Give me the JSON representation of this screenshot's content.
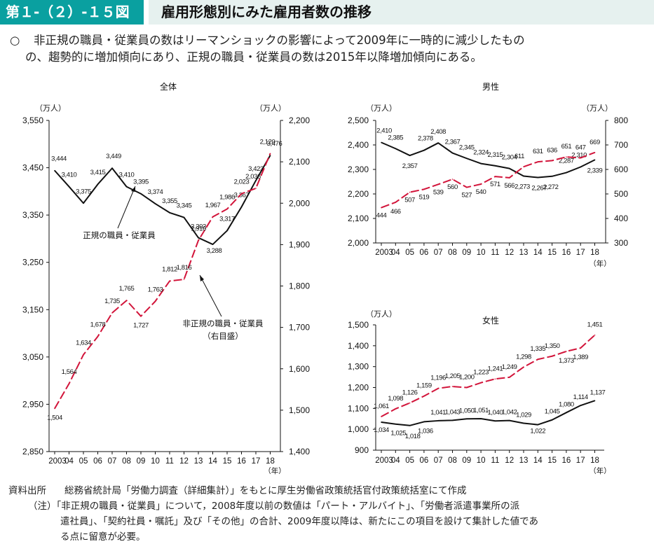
{
  "header": {
    "figure_number": "第１-（２）-１５図",
    "title": "雇用形態別にみた雇用者数の推移"
  },
  "summary": {
    "bullet": "○",
    "line1": "非正規の職員・従業員の数はリーマンショックの影響によって2009年に一時的に減少したもの",
    "line2": "の、趨勢的に増加傾向にあり、正規の職員・従業員の数は2015年以降増加傾向にある。"
  },
  "chart_data": [
    {
      "type": "line",
      "title": "全体",
      "left_unit": "（万人）",
      "right_unit": "（万人）",
      "x_unit": "（年）",
      "categories": [
        "2003",
        "04",
        "05",
        "06",
        "07",
        "08",
        "09",
        "10",
        "11",
        "12",
        "13",
        "14",
        "15",
        "16",
        "17",
        "18"
      ],
      "left_ylim": [
        2850,
        3550
      ],
      "left_ticks": [
        "2,850",
        "2,950",
        "3,050",
        "3,150",
        "3,250",
        "3,350",
        "3,450",
        "3,550"
      ],
      "right_ylim": [
        1400,
        2200
      ],
      "right_ticks": [
        "1,400",
        "1,500",
        "1,600",
        "1,700",
        "1,800",
        "1,900",
        "2,000",
        "2,100",
        "2,200"
      ],
      "series": [
        {
          "name": "正規の職員・従業員",
          "axis": "left",
          "style": "solid",
          "color": "#111111",
          "values": [
            3444,
            3410,
            3375,
            3415,
            3449,
            3410,
            3395,
            3374,
            3355,
            3345,
            3302,
            3288,
            3317,
            3367,
            3423,
            3476
          ],
          "labels": [
            "3,444",
            "3,410",
            "3,375",
            "3,415",
            "3,449",
            "3,410",
            "3,395",
            "3,374",
            "3,355",
            "3,345",
            "3,302",
            "3,288",
            "3,317",
            "3,367",
            "3,423",
            "3,476"
          ]
        },
        {
          "name": "非正規の職員・従業員",
          "axis": "right",
          "style": "dashed",
          "color": "#d2143a",
          "values": [
            1504,
            1564,
            1634,
            1678,
            1735,
            1765,
            1727,
            1763,
            1812,
            1816,
            1910,
            1967,
            1986,
            2023,
            2036,
            2120
          ],
          "labels": [
            "1,504",
            "1,564",
            "1,634",
            "1,678",
            "1,735",
            "1,765",
            "1,727",
            "1,763",
            "1,812",
            "1,816",
            "1,910",
            "1,967",
            "1,986",
            "2,023",
            "2,036",
            "2,120"
          ]
        }
      ],
      "annotations": {
        "regular": "正規の職員・従業員",
        "nonregular_line1": "非正規の職員・従業員",
        "nonregular_line2": "（右目盛）"
      }
    },
    {
      "type": "line",
      "title": "男性",
      "left_unit": "（万人）",
      "right_unit": "（万人）",
      "x_unit": "（年）",
      "categories": [
        "2003",
        "04",
        "05",
        "06",
        "07",
        "08",
        "09",
        "10",
        "11",
        "12",
        "13",
        "14",
        "15",
        "16",
        "17",
        "18"
      ],
      "left_ylim": [
        2000,
        2500
      ],
      "left_ticks": [
        "2,000",
        "2,100",
        "2,200",
        "2,300",
        "2,400",
        "2,500"
      ],
      "right_ylim": [
        300,
        800
      ],
      "right_ticks": [
        "300",
        "400",
        "500",
        "600",
        "700",
        "800"
      ],
      "series": [
        {
          "axis": "left",
          "style": "solid",
          "color": "#111111",
          "values": [
            2410,
            2385,
            2357,
            2378,
            2408,
            2367,
            2345,
            2324,
            2315,
            2304,
            2273,
            2267,
            2272,
            2287,
            2310,
            2339
          ],
          "labels": [
            "2,410",
            "2,385",
            "2,357",
            "2,378",
            "2,408",
            "2,367",
            "2,345",
            "2,324",
            "2,315",
            "2,304",
            "2,273",
            "2,267",
            "2,272",
            "2,287",
            "2,310",
            "2,339"
          ]
        },
        {
          "axis": "right",
          "style": "dashed",
          "color": "#d2143a",
          "values": [
            444,
            466,
            507,
            519,
            539,
            560,
            527,
            540,
            571,
            566,
            611,
            631,
            636,
            651,
            647,
            669
          ],
          "labels": [
            "444",
            "466",
            "507",
            "519",
            "539",
            "560",
            "527",
            "540",
            "571",
            "566",
            "611",
            "631",
            "636",
            "651",
            "647",
            "669"
          ]
        }
      ]
    },
    {
      "type": "line",
      "title": "女性",
      "left_unit": "（万人）",
      "x_unit": "（年）",
      "categories": [
        "2003",
        "04",
        "05",
        "06",
        "07",
        "08",
        "09",
        "10",
        "11",
        "12",
        "13",
        "14",
        "15",
        "16",
        "17",
        "18"
      ],
      "left_ylim": [
        900,
        1500
      ],
      "left_ticks": [
        "900",
        "1,000",
        "1,100",
        "1,200",
        "1,300",
        "1,400",
        "1,500"
      ],
      "series": [
        {
          "axis": "left",
          "style": "solid",
          "color": "#111111",
          "values": [
            1034,
            1025,
            1018,
            1036,
            1041,
            1043,
            1050,
            1051,
            1040,
            1042,
            1029,
            1022,
            1045,
            1080,
            1114,
            1137
          ],
          "labels": [
            "1,034",
            "1,025",
            "1,018",
            "1,036",
            "1,041",
            "1,043",
            "1,050",
            "1,051",
            "1,040",
            "1,042",
            "1,029",
            "1,022",
            "1,045",
            "1,080",
            "1,114",
            "1,137"
          ]
        },
        {
          "axis": "left",
          "style": "dashed",
          "color": "#d2143a",
          "values": [
            1061,
            1098,
            1126,
            1159,
            1196,
            1205,
            1200,
            1223,
            1241,
            1249,
            1298,
            1335,
            1350,
            1373,
            1389,
            1451
          ],
          "labels": [
            "1,061",
            "1,098",
            "1,126",
            "1,159",
            "1,196",
            "1,205",
            "1,200",
            "1,223",
            "1,241",
            "1,249",
            "1,298",
            "1,335",
            "1,350",
            "1,373",
            "1,389",
            "1,451"
          ]
        }
      ]
    }
  ],
  "source": {
    "label": "資料出所",
    "text": "総務省統計局「労働力調査（詳細集計）」をもとに厚生労働省政策統括官付政策統括室にて作成",
    "note_line1": "（注）「非正規の職員・従業員」について，2008年度以前の数値は「パート・アルバイト」、「労働者派遣事業所の派",
    "note_line2": "遣社員」、「契約社員・嘱託」及び「その他」の合計、2009年度以降は、新たにこの項目を設けて集計した値であ",
    "note_line3": "る点に留意が必要。"
  }
}
